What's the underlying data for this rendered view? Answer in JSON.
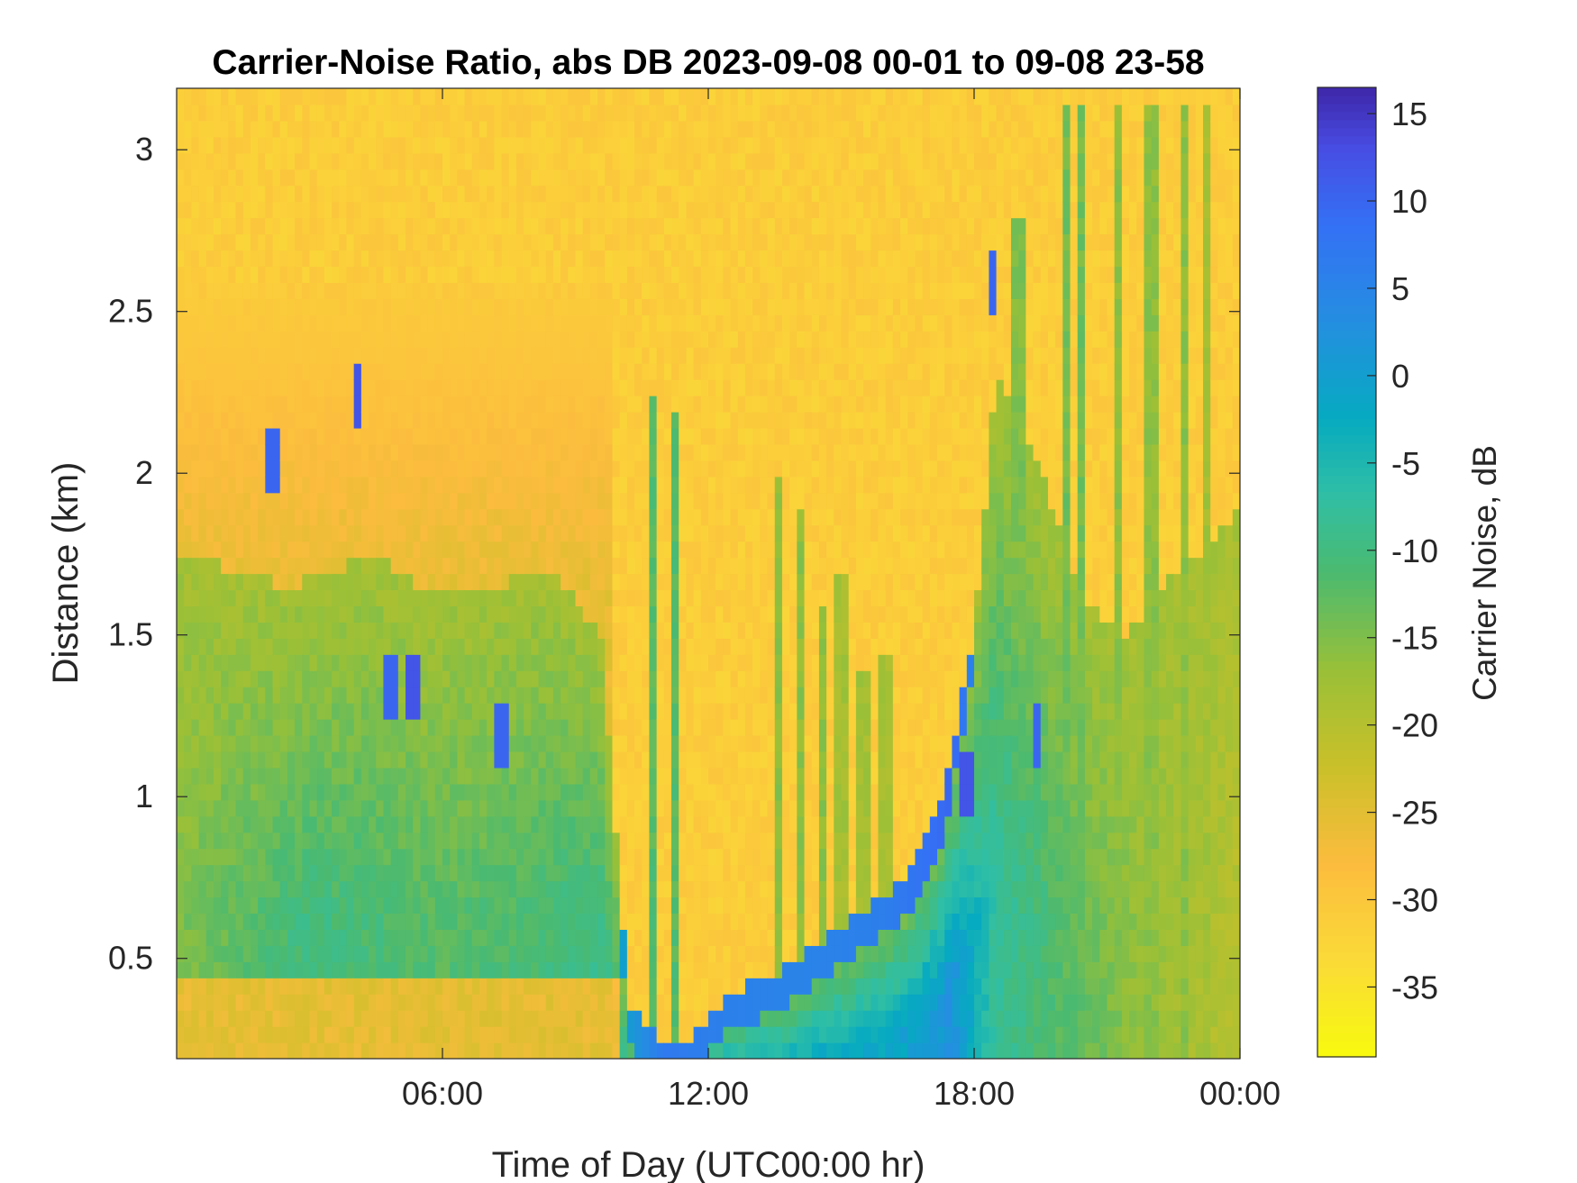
{
  "chart_data": {
    "type": "heatmap",
    "title": "Carrier-Noise Ratio, abs DB 2023-09-08 00-01 to 09-08 23-58",
    "xlabel": "Time of Day (UTC00:00 hr)",
    "ylabel": "Distance (km)",
    "colorbar_label": "Carrier Noise, dB",
    "colormap": "parula (reversed)",
    "x_unit": "hours UTC",
    "xlim": [
      0,
      24
    ],
    "ylim": [
      0.19,
      3.19
    ],
    "clim": [
      -39,
      16.5
    ],
    "x_ticks": [
      {
        "value": 6,
        "label": "06:00"
      },
      {
        "value": 12,
        "label": "12:00"
      },
      {
        "value": 18,
        "label": "18:00"
      },
      {
        "value": 24,
        "label": "00:00"
      }
    ],
    "y_ticks": [
      {
        "value": 0.5,
        "label": "0.5"
      },
      {
        "value": 1,
        "label": "1"
      },
      {
        "value": 1.5,
        "label": "1.5"
      },
      {
        "value": 2,
        "label": "2"
      },
      {
        "value": 2.5,
        "label": "2.5"
      },
      {
        "value": 3,
        "label": "3"
      }
    ],
    "colorbar_ticks": [
      {
        "value": 15,
        "label": "15"
      },
      {
        "value": 10,
        "label": "10"
      },
      {
        "value": 5,
        "label": "5"
      },
      {
        "value": 0,
        "label": "0"
      },
      {
        "value": -5,
        "label": "-5"
      },
      {
        "value": -10,
        "label": "-10"
      },
      {
        "value": -15,
        "label": "-15"
      },
      {
        "value": -20,
        "label": "-20"
      },
      {
        "value": -25,
        "label": "-25"
      },
      {
        "value": -30,
        "label": "-30"
      },
      {
        "value": -35,
        "label": "-35"
      }
    ],
    "background_value_db": -31,
    "aerosol_layer_top_km": [
      [
        0,
        1.75
      ],
      [
        1.5,
        1.7
      ],
      [
        2.5,
        1.65
      ],
      [
        3.5,
        1.7
      ],
      [
        4.5,
        1.75
      ],
      [
        5.5,
        1.65
      ],
      [
        7,
        1.65
      ],
      [
        8.5,
        1.7
      ],
      [
        9.6,
        1.5
      ],
      [
        10.2,
        0.35
      ],
      [
        11,
        0.25
      ],
      [
        11.5,
        0.25
      ],
      [
        12.5,
        0.4
      ],
      [
        13.5,
        0.45
      ],
      [
        14.5,
        0.55
      ],
      [
        15.5,
        0.65
      ],
      [
        16.5,
        0.75
      ],
      [
        17.3,
        1.0
      ],
      [
        18,
        1.5
      ],
      [
        18.5,
        2.3
      ],
      [
        19.5,
        2.0
      ],
      [
        20.5,
        1.6
      ],
      [
        21.5,
        1.5
      ],
      [
        22.5,
        1.7
      ],
      [
        23.5,
        1.8
      ],
      [
        24,
        1.9
      ]
    ],
    "layer_core_db": [
      [
        0,
        -15
      ],
      [
        3,
        -10
      ],
      [
        6,
        -12
      ],
      [
        8,
        -11
      ],
      [
        10,
        -9
      ],
      [
        11,
        -1
      ],
      [
        12,
        -2
      ],
      [
        14,
        -3
      ],
      [
        16,
        -2
      ],
      [
        17.5,
        2
      ],
      [
        18.5,
        -8
      ],
      [
        20,
        -12
      ],
      [
        22,
        -17
      ],
      [
        24,
        -20
      ]
    ],
    "surface_band": {
      "top_km": 0.45,
      "value_db": -27,
      "x_range": [
        0,
        10
      ]
    },
    "upper_plume": {
      "x_range": [
        0,
        9.8
      ],
      "top_km": 2.6,
      "value_db": -24
    },
    "vertical_streaks": [
      {
        "x": 10.8,
        "top_km": 2.25,
        "value_db": -12
      },
      {
        "x": 11.2,
        "top_km": 2.2,
        "value_db": -12
      },
      {
        "x": 13.6,
        "top_km": 2.0,
        "value_db": -16
      },
      {
        "x": 14.1,
        "top_km": 1.9,
        "value_db": -16
      },
      {
        "x": 14.6,
        "top_km": 1.6,
        "value_db": -16
      },
      {
        "x": 15.0,
        "top_km": 1.7,
        "value_db": -18
      },
      {
        "x": 15.5,
        "top_km": 1.4,
        "value_db": -18
      },
      {
        "x": 16.0,
        "top_km": 1.45,
        "value_db": -18
      },
      {
        "x": 19.0,
        "top_km": 2.8,
        "value_db": -15
      },
      {
        "x": 20.1,
        "top_km": 3.15,
        "value_db": -14
      },
      {
        "x": 20.4,
        "top_km": 3.15,
        "value_db": -14
      },
      {
        "x": 21.2,
        "top_km": 3.15,
        "value_db": -16
      },
      {
        "x": 22.0,
        "top_km": 3.15,
        "value_db": -16
      },
      {
        "x": 22.7,
        "top_km": 3.15,
        "value_db": -16
      },
      {
        "x": 23.2,
        "top_km": 3.15,
        "value_db": -18
      }
    ],
    "strong_return_patches": [
      {
        "x": 2.2,
        "y": 2.05,
        "value_db": 10
      },
      {
        "x": 4.1,
        "y": 2.25,
        "value_db": 12
      },
      {
        "x": 4.8,
        "y": 1.35,
        "value_db": 10
      },
      {
        "x": 5.3,
        "y": 1.35,
        "value_db": 12
      },
      {
        "x": 7.3,
        "y": 1.2,
        "value_db": 10
      },
      {
        "x": 17.8,
        "y": 1.05,
        "value_db": 12
      },
      {
        "x": 18.4,
        "y": 2.6,
        "value_db": 10
      },
      {
        "x": 19.4,
        "y": 1.2,
        "value_db": 10
      }
    ]
  }
}
